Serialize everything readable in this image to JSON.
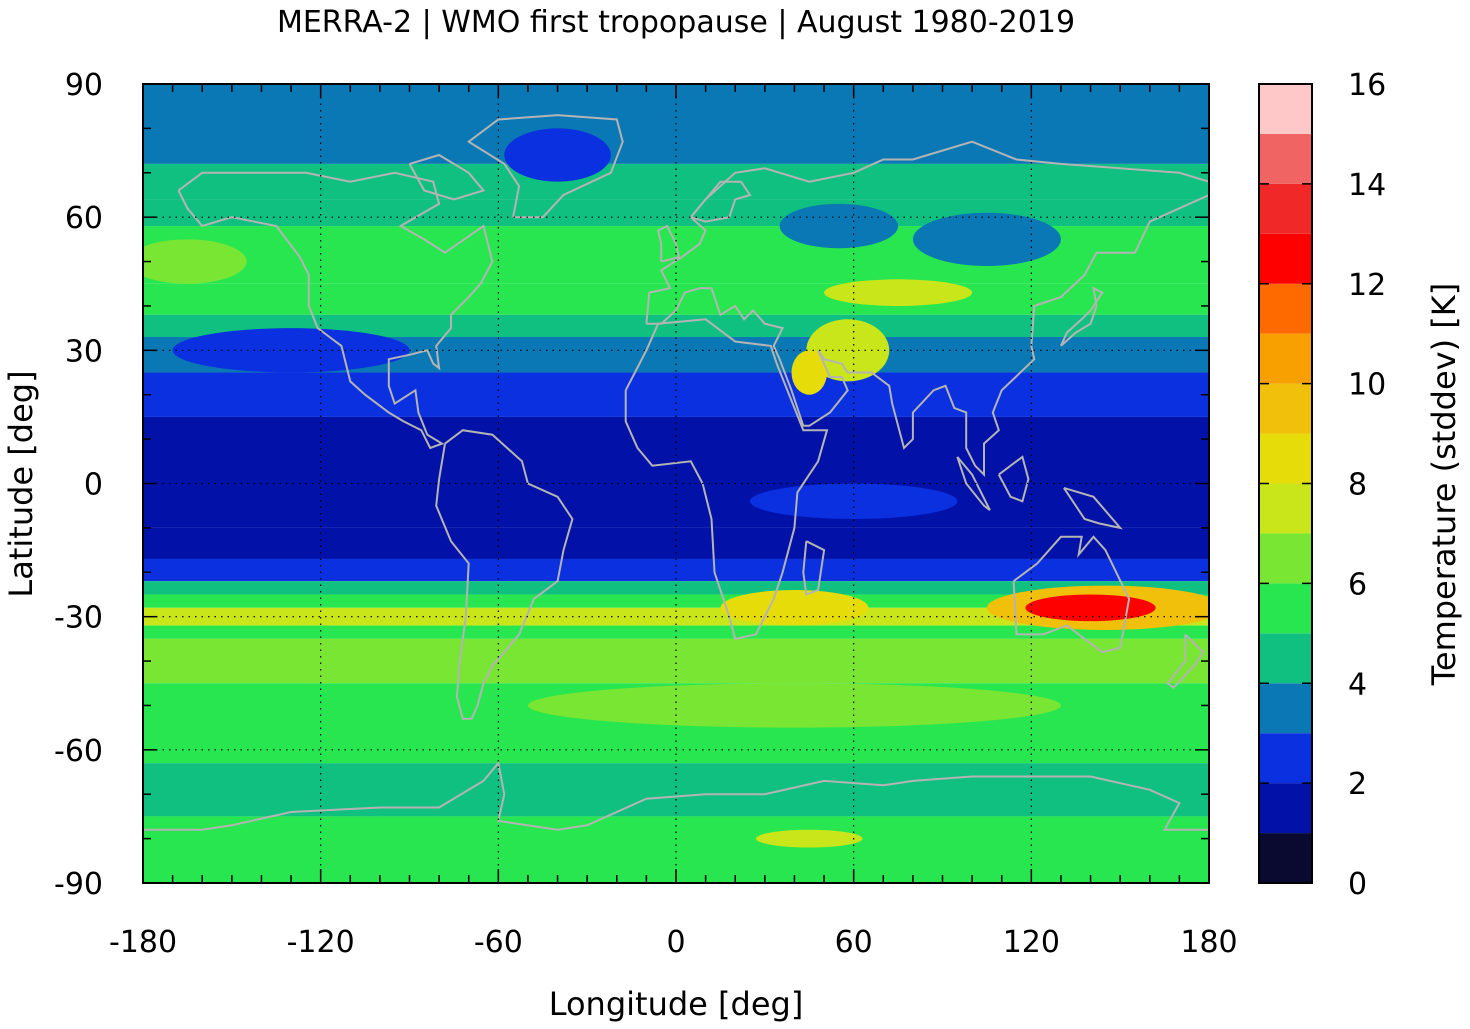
{
  "chart_data": {
    "type": "heatmap",
    "title": "MERRA-2 | WMO first tropopause | August 1980-2019",
    "xlabel": "Longitude [deg]",
    "ylabel": "Latitude [deg]",
    "xlim": [
      -180,
      180
    ],
    "ylim": [
      -90,
      90
    ],
    "xticks": [
      -180,
      -120,
      -60,
      0,
      60,
      120,
      180
    ],
    "yticks": [
      90,
      60,
      30,
      0,
      -30,
      -60,
      -90
    ],
    "grid": true,
    "colorbar": {
      "label": "Temperature (stddev) [K]",
      "range": [
        0,
        16
      ],
      "ticks": [
        16,
        14,
        12,
        10,
        8,
        6,
        4,
        2,
        0
      ],
      "levels": [
        {
          "from": 0,
          "to": 1,
          "color": "#0a0a30"
        },
        {
          "from": 1,
          "to": 2,
          "color": "#0212a8"
        },
        {
          "from": 2,
          "to": 3,
          "color": "#0a30e0"
        },
        {
          "from": 3,
          "to": 4,
          "color": "#0a78b4"
        },
        {
          "from": 4,
          "to": 5,
          "color": "#10c080"
        },
        {
          "from": 5,
          "to": 6,
          "color": "#28e650"
        },
        {
          "from": 6,
          "to": 7,
          "color": "#78e632"
        },
        {
          "from": 7,
          "to": 8,
          "color": "#c8e61a"
        },
        {
          "from": 8,
          "to": 9,
          "color": "#e6dc0a"
        },
        {
          "from": 9,
          "to": 10,
          "color": "#f0c00a"
        },
        {
          "from": 10,
          "to": 11,
          "color": "#f8a000"
        },
        {
          "from": 11,
          "to": 12,
          "color": "#ff6a00"
        },
        {
          "from": 12,
          "to": 13,
          "color": "#ff0000"
        },
        {
          "from": 13,
          "to": 14,
          "color": "#f02828"
        },
        {
          "from": 14,
          "to": 15,
          "color": "#f06464"
        },
        {
          "from": 15,
          "to": 16,
          "color": "#ffc8c8"
        }
      ]
    },
    "field_bands": [
      {
        "lat_top": 90,
        "lat_bottom": 72,
        "value": 3.5
      },
      {
        "lat_top": 72,
        "lat_bottom": 64,
        "value": 4.5
      },
      {
        "lat_top": 64,
        "lat_bottom": 58,
        "value": 4.5
      },
      {
        "lat_top": 58,
        "lat_bottom": 45,
        "value": 5.5
      },
      {
        "lat_top": 45,
        "lat_bottom": 38,
        "value": 5.5
      },
      {
        "lat_top": 38,
        "lat_bottom": 33,
        "value": 4.5
      },
      {
        "lat_top": 33,
        "lat_bottom": 25,
        "value": 3.5
      },
      {
        "lat_top": 25,
        "lat_bottom": 15,
        "value": 2.5
      },
      {
        "lat_top": 15,
        "lat_bottom": -10,
        "value": 1.5
      },
      {
        "lat_top": -10,
        "lat_bottom": -17,
        "value": 1.5
      },
      {
        "lat_top": -17,
        "lat_bottom": -22,
        "value": 2.5
      },
      {
        "lat_top": -22,
        "lat_bottom": -25,
        "value": 4.5
      },
      {
        "lat_top": -25,
        "lat_bottom": -28,
        "value": 5.5
      },
      {
        "lat_top": -28,
        "lat_bottom": -32,
        "value": 7.5
      },
      {
        "lat_top": -32,
        "lat_bottom": -35,
        "value": 5.5
      },
      {
        "lat_top": -35,
        "lat_bottom": -45,
        "value": 6.5
      },
      {
        "lat_top": -45,
        "lat_bottom": -63,
        "value": 5.5
      },
      {
        "lat_top": -63,
        "lat_bottom": -75,
        "value": 4.5
      },
      {
        "lat_top": -75,
        "lat_bottom": -90,
        "value": 5.5
      }
    ],
    "field_patches": [
      {
        "lon": 145,
        "lat": -28,
        "rx": 40,
        "ry": 5,
        "value": 9.5
      },
      {
        "lon": 140,
        "lat": -28,
        "rx": 22,
        "ry": 3,
        "value": 12.5
      },
      {
        "lon": 40,
        "lat": -28,
        "rx": 25,
        "ry": 4,
        "value": 8.5
      },
      {
        "lon": 75,
        "lat": 43,
        "rx": 25,
        "ry": 3,
        "value": 7.5
      },
      {
        "lon": 58,
        "lat": 30,
        "rx": 14,
        "ry": 7,
        "value": 7.5
      },
      {
        "lon": 45,
        "lat": 25,
        "rx": 6,
        "ry": 5,
        "value": 8.5
      },
      {
        "lon": 55,
        "lat": 58,
        "rx": 20,
        "ry": 5,
        "value": 3.5
      },
      {
        "lon": 105,
        "lat": 55,
        "rx": 25,
        "ry": 6,
        "value": 3.5
      },
      {
        "lon": -40,
        "lat": 74,
        "rx": 18,
        "ry": 6,
        "value": 2.5
      },
      {
        "lon": -130,
        "lat": 30,
        "rx": 40,
        "ry": 5,
        "value": 2.5
      },
      {
        "lon": 60,
        "lat": -4,
        "rx": 35,
        "ry": 4,
        "value": 2.5
      },
      {
        "lon": 40,
        "lat": -50,
        "rx": 90,
        "ry": 5,
        "value": 6.5
      },
      {
        "lon": 30,
        "lat": -80,
        "rx": 35,
        "ry": 4,
        "value": 5.5
      },
      {
        "lon": 45,
        "lat": -80,
        "rx": 18,
        "ry": 2,
        "value": 7.5
      },
      {
        "lon": -165,
        "lat": 50,
        "rx": 20,
        "ry": 5,
        "value": 6.5
      }
    ]
  }
}
